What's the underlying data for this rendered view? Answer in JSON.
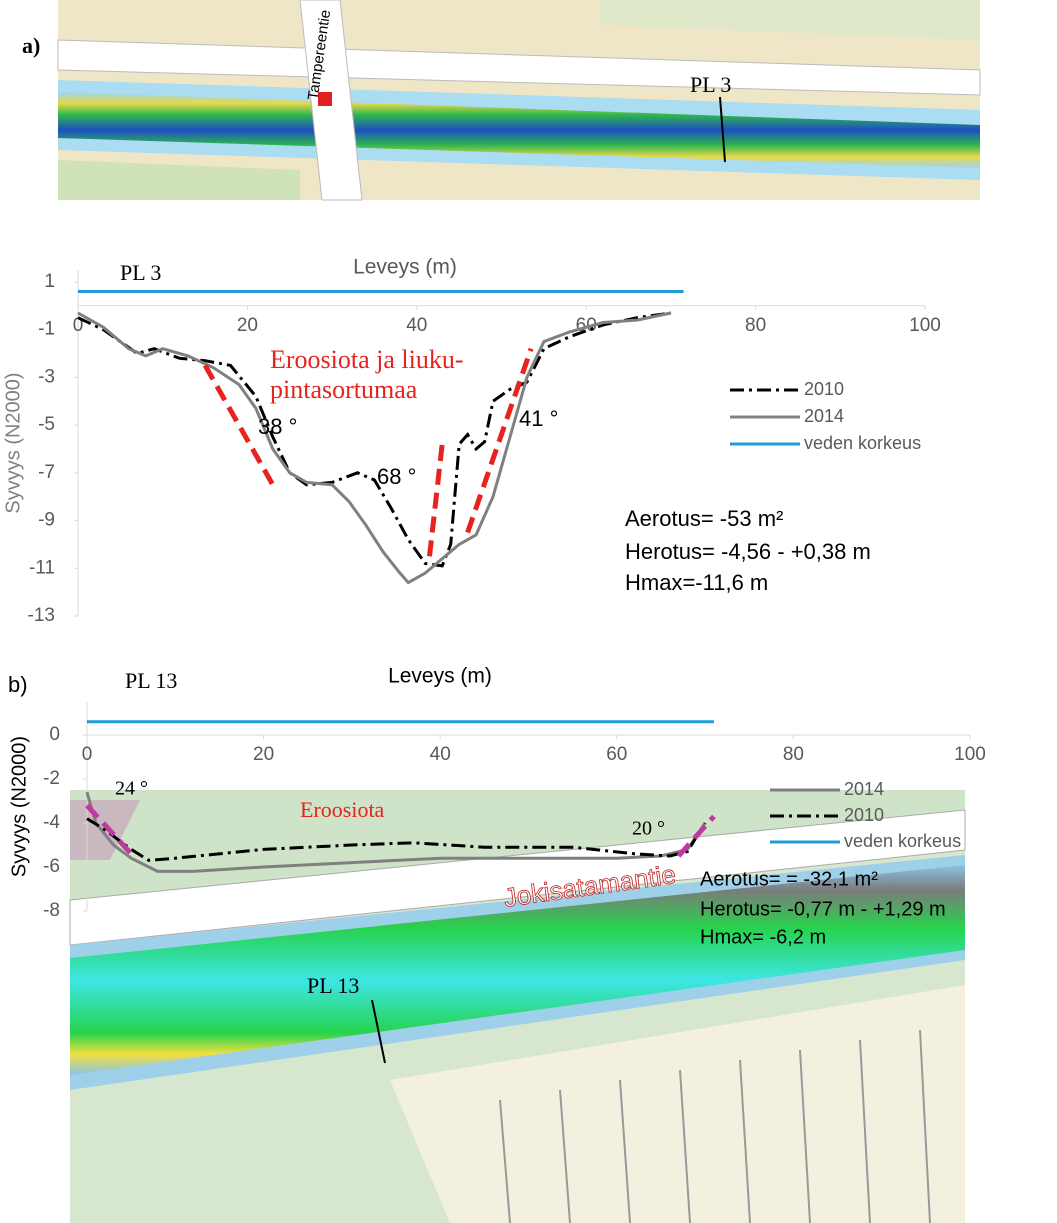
{
  "panels": [
    "a)",
    "b)"
  ],
  "maps": [
    {
      "labels": [
        "Tampereentie",
        "PL 3"
      ]
    },
    {
      "labels": [
        "Jokisatamantie",
        "PL 13"
      ]
    }
  ],
  "chart_data": [
    {
      "type": "line",
      "title": "PL 3",
      "x_label": "Leveys (m)",
      "y_label": "Syvyys (N2000)",
      "xlim": [
        0,
        100
      ],
      "xticks": [
        0,
        20,
        40,
        60,
        80,
        100
      ],
      "ylim": [
        -13,
        1.5
      ],
      "yticks": [
        1,
        -1,
        -3,
        -5,
        -7,
        -9,
        -11,
        -13
      ],
      "series": [
        {
          "name": "2010",
          "color": "#000000",
          "dash": "dashdot",
          "x": [
            0,
            3,
            7,
            9,
            12,
            15,
            18,
            21,
            23,
            25,
            27,
            30,
            33,
            35,
            37,
            39,
            41,
            43,
            44,
            45,
            46,
            47,
            48,
            49,
            51,
            53,
            55,
            58,
            62,
            66,
            70
          ],
          "values": [
            -0.5,
            -1.0,
            -2.0,
            -1.8,
            -2.2,
            -2.3,
            -2.5,
            -3.8,
            -5.5,
            -7.0,
            -7.5,
            -7.4,
            -7.0,
            -7.3,
            -8.5,
            -9.8,
            -10.8,
            -10.9,
            -10.0,
            -5.8,
            -5.4,
            -6.0,
            -5.7,
            -4.0,
            -3.5,
            -3.2,
            -1.8,
            -1.3,
            -0.8,
            -0.5,
            -0.3
          ]
        },
        {
          "name": "2014",
          "color": "#808080",
          "dash": "solid",
          "x": [
            0,
            3,
            6,
            8,
            10,
            13,
            16,
            19,
            21,
            23,
            25,
            27,
            30,
            32,
            34,
            36,
            38,
            39,
            41,
            43,
            45,
            47,
            49,
            51,
            53,
            55,
            58,
            62,
            66,
            70
          ],
          "values": [
            -0.3,
            -0.9,
            -1.8,
            -2.1,
            -1.8,
            -2.1,
            -2.6,
            -3.3,
            -4.3,
            -6.0,
            -7.0,
            -7.4,
            -7.5,
            -8.2,
            -9.2,
            -10.3,
            -11.2,
            -11.6,
            -11.2,
            -10.6,
            -10.0,
            -9.6,
            -8.0,
            -5.5,
            -3.0,
            -1.5,
            -1.1,
            -0.7,
            -0.6,
            -0.3
          ]
        },
        {
          "name": "veden korkeus",
          "color": "#1f9bd7",
          "dash": "solid",
          "x": [
            0,
            71.5
          ],
          "values": [
            0.6,
            0.6
          ]
        }
      ],
      "legend_order": [
        0,
        1,
        2
      ],
      "guides": [
        {
          "color": "#e8221c",
          "x": [
            15,
            23
          ],
          "values": [
            -2.5,
            -7.5
          ]
        },
        {
          "color": "#e8221c",
          "x": [
            41.5,
            43
          ],
          "values": [
            -10.5,
            -5.8
          ]
        },
        {
          "color": "#e8221c",
          "x": [
            46,
            53.5
          ],
          "values": [
            -9.5,
            -1.8
          ]
        }
      ],
      "annotations": [
        "Eroosiota ja liuku-",
        "pintasortumaa",
        "38 °",
        "68 °",
        "41 °",
        "Aerotus= -53 m²",
        "Herotus= -4,56 - +0,38 m",
        "Hmax=-11,6 m"
      ]
    },
    {
      "type": "line",
      "title": "PL 13",
      "x_label": "Leveys (m)",
      "y_label": "Syvyys (N2000)",
      "xlim": [
        0,
        100
      ],
      "xticks": [
        0,
        20,
        40,
        60,
        80,
        100
      ],
      "ylim": [
        -8,
        1.5
      ],
      "yticks": [
        0,
        -2,
        -4,
        -6,
        -8
      ],
      "series": [
        {
          "name": "2014",
          "color": "#808080",
          "dash": "solid",
          "x": [
            0,
            1,
            3,
            5,
            8,
            12,
            20,
            30,
            40,
            50,
            60,
            65,
            68,
            70
          ],
          "values": [
            -2.6,
            -4.0,
            -5.0,
            -5.6,
            -6.2,
            -6.2,
            -6.0,
            -5.8,
            -5.6,
            -5.6,
            -5.6,
            -5.5,
            -5.2,
            -4.0
          ]
        },
        {
          "name": "2010",
          "color": "#000000",
          "dash": "dashdot",
          "x": [
            0,
            2,
            5,
            7,
            10,
            20,
            30,
            37,
            45,
            55,
            62,
            66,
            68,
            70
          ],
          "values": [
            -3.8,
            -4.3,
            -5.2,
            -5.7,
            -5.6,
            -5.2,
            -5.0,
            -4.9,
            -5.1,
            -5.1,
            -5.4,
            -5.5,
            -5.3,
            -4.0
          ]
        },
        {
          "name": "veden korkeus",
          "color": "#1f9bd7",
          "dash": "solid",
          "x": [
            0,
            71
          ],
          "values": [
            0.6,
            0.6
          ]
        }
      ],
      "legend_order": [
        0,
        1,
        2
      ],
      "guides": [
        {
          "color": "#c0399f",
          "x": [
            0,
            5
          ],
          "values": [
            -3.2,
            -5.4
          ]
        },
        {
          "color": "#c0399f",
          "x": [
            67,
            71
          ],
          "values": [
            -5.5,
            -3.7
          ]
        }
      ],
      "annotations": [
        "Eroosiota",
        "24 °",
        "20 °",
        "Aerotus= = -32,1 m²",
        "Herotus= -0,77 m - +1,29 m",
        "Hmax= -6,2 m"
      ]
    }
  ]
}
